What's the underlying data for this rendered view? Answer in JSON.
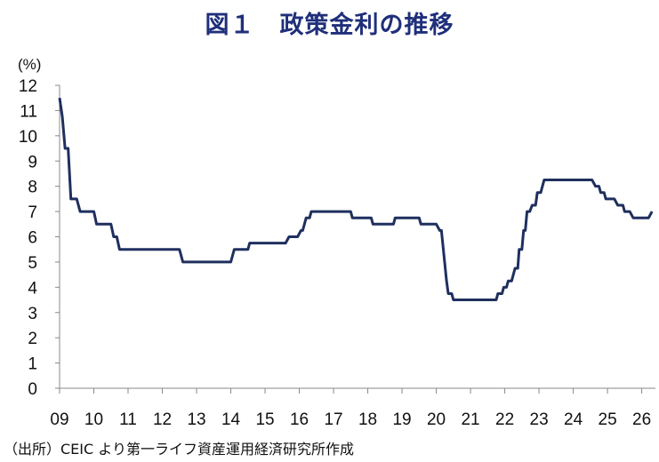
{
  "title": "図１　政策金利の推移",
  "source": "（出所）CEIC より第一ライフ資産運用経済研究所作成",
  "chart_data": {
    "type": "line",
    "title": "図１　政策金利の推移",
    "ylabel": "(%)",
    "xlabel": "",
    "ylim": [
      0,
      12
    ],
    "xlim": [
      2009.0,
      2026.4
    ],
    "grid": false,
    "y_ticks": [
      "0",
      "1",
      "2",
      "3",
      "4",
      "5",
      "6",
      "7",
      "8",
      "9",
      "10",
      "11",
      "12"
    ],
    "x_ticks": [
      {
        "label": "09",
        "x": 2009
      },
      {
        "label": "10",
        "x": 2010
      },
      {
        "label": "11",
        "x": 2011
      },
      {
        "label": "12",
        "x": 2012
      },
      {
        "label": "13",
        "x": 2013
      },
      {
        "label": "14",
        "x": 2014
      },
      {
        "label": "15",
        "x": 2015
      },
      {
        "label": "16",
        "x": 2016
      },
      {
        "label": "17",
        "x": 2017
      },
      {
        "label": "18",
        "x": 2018
      },
      {
        "label": "19",
        "x": 2019
      },
      {
        "label": "20",
        "x": 2020
      },
      {
        "label": "21",
        "x": 2021
      },
      {
        "label": "22",
        "x": 2022
      },
      {
        "label": "23",
        "x": 2023
      },
      {
        "label": "24",
        "x": 2024
      },
      {
        "label": "25",
        "x": 2025
      },
      {
        "label": "26",
        "x": 2026
      }
    ],
    "series": [
      {
        "color": "#1f2f5e",
        "points": [
          [
            2009.0,
            11.5
          ],
          [
            2009.08,
            10.75
          ],
          [
            2009.16,
            9.5
          ],
          [
            2009.25,
            9.5
          ],
          [
            2009.33,
            7.5
          ],
          [
            2009.5,
            7.5
          ],
          [
            2009.6,
            7.0
          ],
          [
            2010.0,
            7.0
          ],
          [
            2010.08,
            6.5
          ],
          [
            2010.5,
            6.5
          ],
          [
            2010.58,
            6.0
          ],
          [
            2010.67,
            6.0
          ],
          [
            2010.75,
            5.5
          ],
          [
            2012.5,
            5.5
          ],
          [
            2012.6,
            5.0
          ],
          [
            2014.0,
            5.0
          ],
          [
            2014.1,
            5.5
          ],
          [
            2014.5,
            5.5
          ],
          [
            2014.55,
            5.75
          ],
          [
            2015.6,
            5.75
          ],
          [
            2015.7,
            6.0
          ],
          [
            2015.95,
            6.0
          ],
          [
            2016.05,
            6.25
          ],
          [
            2016.1,
            6.25
          ],
          [
            2016.15,
            6.5
          ],
          [
            2016.2,
            6.75
          ],
          [
            2016.3,
            6.75
          ],
          [
            2016.35,
            7.0
          ],
          [
            2017.5,
            7.0
          ],
          [
            2017.55,
            6.75
          ],
          [
            2018.1,
            6.75
          ],
          [
            2018.15,
            6.5
          ],
          [
            2018.75,
            6.5
          ],
          [
            2018.8,
            6.75
          ],
          [
            2019.5,
            6.75
          ],
          [
            2019.55,
            6.5
          ],
          [
            2020.0,
            6.5
          ],
          [
            2020.1,
            6.25
          ],
          [
            2020.15,
            6.25
          ],
          [
            2020.3,
            4.25
          ],
          [
            2020.35,
            3.75
          ],
          [
            2020.45,
            3.75
          ],
          [
            2020.5,
            3.5
          ],
          [
            2021.75,
            3.5
          ],
          [
            2021.8,
            3.75
          ],
          [
            2021.92,
            3.75
          ],
          [
            2021.97,
            4.0
          ],
          [
            2022.05,
            4.0
          ],
          [
            2022.1,
            4.25
          ],
          [
            2022.2,
            4.25
          ],
          [
            2022.3,
            4.75
          ],
          [
            2022.38,
            4.75
          ],
          [
            2022.42,
            5.5
          ],
          [
            2022.5,
            5.5
          ],
          [
            2022.55,
            6.25
          ],
          [
            2022.6,
            6.25
          ],
          [
            2022.65,
            7.0
          ],
          [
            2022.73,
            7.0
          ],
          [
            2022.8,
            7.25
          ],
          [
            2022.9,
            7.25
          ],
          [
            2022.95,
            7.75
          ],
          [
            2023.05,
            7.75
          ],
          [
            2023.1,
            8.0
          ],
          [
            2023.15,
            8.25
          ],
          [
            2024.55,
            8.25
          ],
          [
            2024.65,
            8.0
          ],
          [
            2024.75,
            8.0
          ],
          [
            2024.8,
            7.75
          ],
          [
            2024.9,
            7.75
          ],
          [
            2024.95,
            7.5
          ],
          [
            2025.2,
            7.5
          ],
          [
            2025.3,
            7.25
          ],
          [
            2025.45,
            7.25
          ],
          [
            2025.5,
            7.0
          ],
          [
            2025.65,
            7.0
          ],
          [
            2025.75,
            6.75
          ],
          [
            2026.2,
            6.75
          ],
          [
            2026.3,
            7.0
          ]
        ]
      }
    ]
  }
}
